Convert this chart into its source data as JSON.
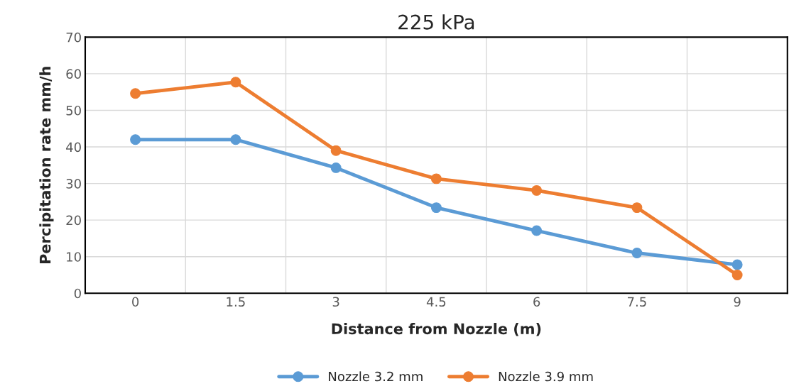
{
  "chart_data": {
    "type": "line",
    "title": "225 kPa",
    "xlabel": "Distance from Nozzle (m)",
    "ylabel": "Percipitation rate mm/h",
    "categories": [
      "0",
      "1.5",
      "3",
      "4.5",
      "6",
      "7.5",
      "9"
    ],
    "series": [
      {
        "name": "Nozzle 3.2 mm",
        "color": "#5b9bd5",
        "values": [
          42,
          42,
          34.3,
          23.4,
          17.1,
          11,
          7.8
        ]
      },
      {
        "name": "Nozzle 3.9 mm",
        "color": "#ed7d31",
        "values": [
          54.6,
          57.7,
          39,
          31.3,
          28.1,
          23.4,
          5
        ]
      }
    ],
    "ylim": [
      0,
      70
    ],
    "yticks": [
      0,
      10,
      20,
      30,
      40,
      50,
      60,
      70
    ],
    "grid": true,
    "legend": "bottom",
    "marker": "circle",
    "line_style": "solid"
  }
}
